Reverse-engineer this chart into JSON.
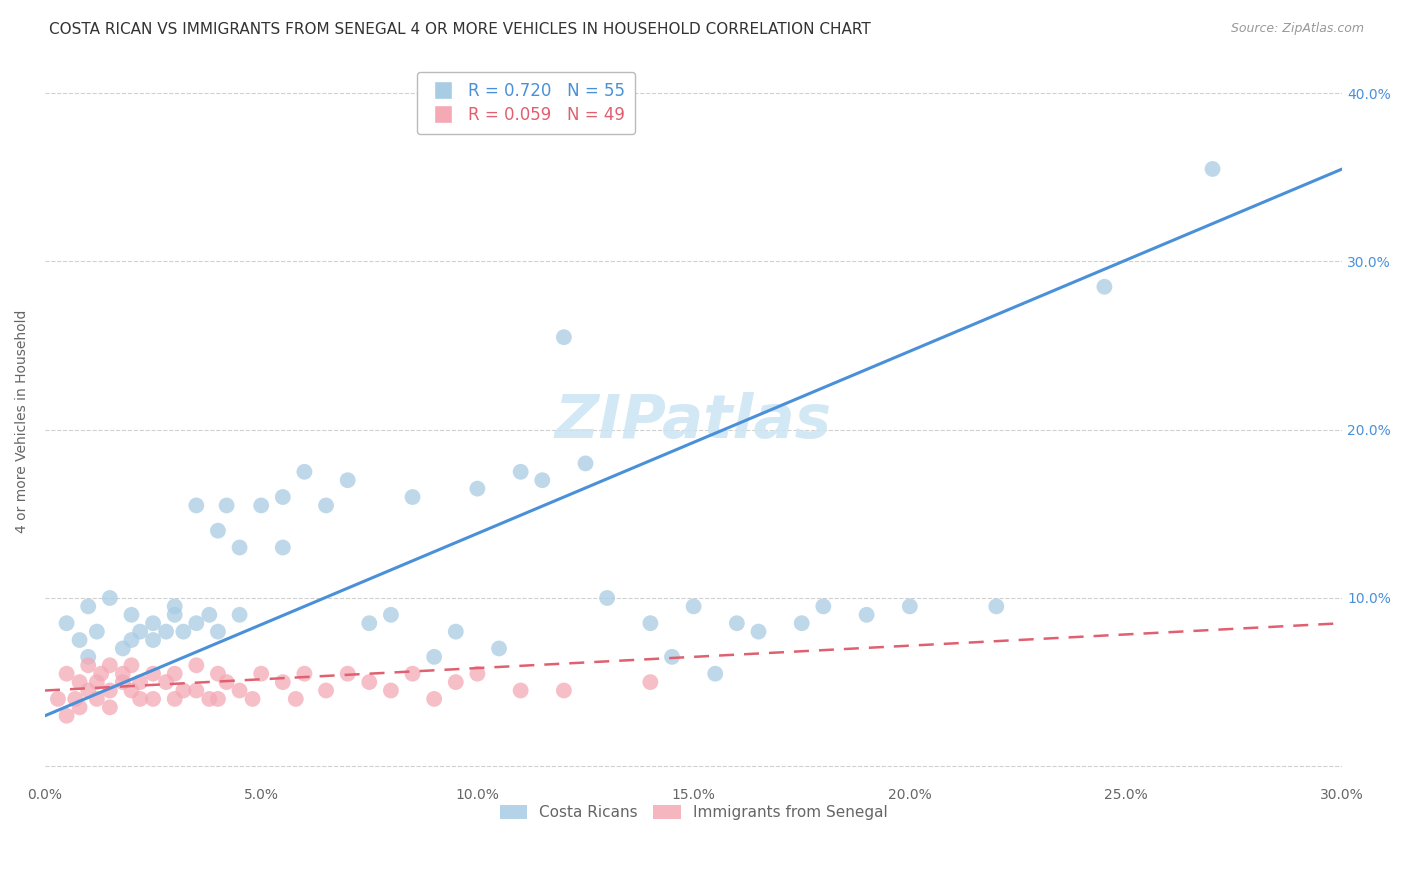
{
  "title": "COSTA RICAN VS IMMIGRANTS FROM SENEGAL 4 OR MORE VEHICLES IN HOUSEHOLD CORRELATION CHART",
  "source": "Source: ZipAtlas.com",
  "ylabel": "4 or more Vehicles in Household",
  "xlim": [
    0.0,
    0.3
  ],
  "ylim": [
    -0.01,
    0.42
  ],
  "xticks": [
    0.0,
    0.05,
    0.1,
    0.15,
    0.2,
    0.25,
    0.3
  ],
  "yticks": [
    0.0,
    0.1,
    0.2,
    0.3,
    0.4
  ],
  "xtick_labels": [
    "0.0%",
    "5.0%",
    "10.0%",
    "15.0%",
    "20.0%",
    "25.0%",
    "30.0%"
  ],
  "right_ytick_labels": [
    "",
    "10.0%",
    "20.0%",
    "30.0%",
    "40.0%"
  ],
  "blue_color": "#a8cce4",
  "pink_color": "#f4a9b5",
  "blue_line_color": "#4a90d9",
  "pink_line_color": "#e06070",
  "legend_blue_text": "R = 0.720   N = 55",
  "legend_pink_text": "R = 0.059   N = 49",
  "watermark": "ZIPatlas",
  "legend_label_blue": "Costa Ricans",
  "legend_label_pink": "Immigrants from Senegal",
  "title_fontsize": 11,
  "source_fontsize": 9,
  "axis_label_fontsize": 10,
  "tick_fontsize": 10,
  "legend_fontsize": 12,
  "watermark_fontsize": 44,
  "grid_color": "#d0d0d0",
  "background_color": "#ffffff",
  "blue_scatter_x": [
    0.005,
    0.008,
    0.01,
    0.01,
    0.012,
    0.015,
    0.018,
    0.02,
    0.02,
    0.022,
    0.025,
    0.025,
    0.028,
    0.03,
    0.03,
    0.032,
    0.035,
    0.035,
    0.038,
    0.04,
    0.04,
    0.042,
    0.045,
    0.045,
    0.05,
    0.055,
    0.055,
    0.06,
    0.065,
    0.07,
    0.075,
    0.08,
    0.085,
    0.09,
    0.095,
    0.1,
    0.105,
    0.11,
    0.115,
    0.12,
    0.125,
    0.13,
    0.14,
    0.145,
    0.15,
    0.155,
    0.16,
    0.165,
    0.175,
    0.18,
    0.19,
    0.2,
    0.22,
    0.245,
    0.27
  ],
  "blue_scatter_y": [
    0.085,
    0.075,
    0.095,
    0.065,
    0.08,
    0.1,
    0.07,
    0.09,
    0.075,
    0.08,
    0.085,
    0.075,
    0.08,
    0.09,
    0.095,
    0.08,
    0.155,
    0.085,
    0.09,
    0.14,
    0.08,
    0.155,
    0.13,
    0.09,
    0.155,
    0.16,
    0.13,
    0.175,
    0.155,
    0.17,
    0.085,
    0.09,
    0.16,
    0.065,
    0.08,
    0.165,
    0.07,
    0.175,
    0.17,
    0.255,
    0.18,
    0.1,
    0.085,
    0.065,
    0.095,
    0.055,
    0.085,
    0.08,
    0.085,
    0.095,
    0.09,
    0.095,
    0.095,
    0.285,
    0.355
  ],
  "pink_scatter_x": [
    0.003,
    0.005,
    0.005,
    0.007,
    0.008,
    0.008,
    0.01,
    0.01,
    0.012,
    0.012,
    0.013,
    0.015,
    0.015,
    0.015,
    0.018,
    0.018,
    0.02,
    0.02,
    0.022,
    0.022,
    0.025,
    0.025,
    0.028,
    0.03,
    0.03,
    0.032,
    0.035,
    0.035,
    0.038,
    0.04,
    0.04,
    0.042,
    0.045,
    0.048,
    0.05,
    0.055,
    0.058,
    0.06,
    0.065,
    0.07,
    0.075,
    0.08,
    0.085,
    0.09,
    0.095,
    0.1,
    0.11,
    0.12,
    0.14
  ],
  "pink_scatter_y": [
    0.04,
    0.03,
    0.055,
    0.04,
    0.05,
    0.035,
    0.045,
    0.06,
    0.05,
    0.04,
    0.055,
    0.06,
    0.045,
    0.035,
    0.05,
    0.055,
    0.06,
    0.045,
    0.05,
    0.04,
    0.055,
    0.04,
    0.05,
    0.055,
    0.04,
    0.045,
    0.06,
    0.045,
    0.04,
    0.055,
    0.04,
    0.05,
    0.045,
    0.04,
    0.055,
    0.05,
    0.04,
    0.055,
    0.045,
    0.055,
    0.05,
    0.045,
    0.055,
    0.04,
    0.05,
    0.055,
    0.045,
    0.045,
    0.05
  ],
  "blue_line_x0": 0.0,
  "blue_line_x1": 0.3,
  "blue_line_y0": 0.03,
  "blue_line_y1": 0.355,
  "pink_line_x0": 0.0,
  "pink_line_x1": 0.3,
  "pink_line_y0": 0.045,
  "pink_line_y1": 0.085
}
